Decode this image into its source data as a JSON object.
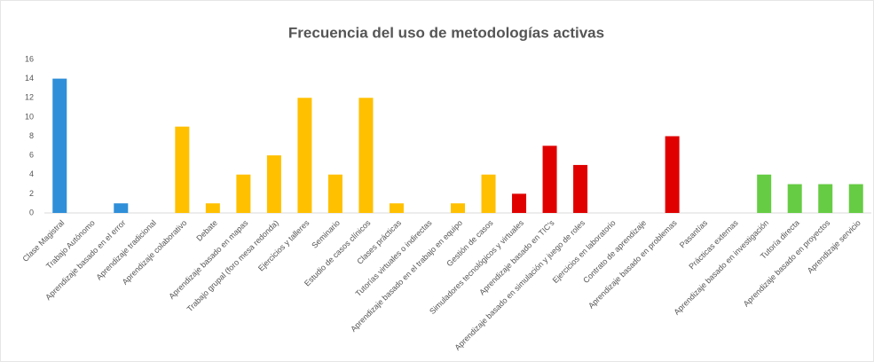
{
  "chart_data": {
    "type": "bar",
    "title": "Frecuencia del uso de metodologías activas",
    "categories": [
      "Clase Magistral",
      "Trabajo Autónomo",
      "Aprendizaje basado en el error",
      "Aprendizaje tradicional",
      "Aprendizaje colaborativo",
      "Debate",
      "Aprendizaje basado en mapas",
      "Trabajo grupal (foro mesa redonda)",
      "Ejercicios y talleres",
      "Seminario",
      "Estudio de casos clínicos",
      "Clases prácticas",
      "Tutorías virtuales o indirectas",
      "Aprendizaje basado en el trabajo en equipo",
      "Gestión de casos",
      "Simuladores tecnológicos y virtuales",
      "Aprendizaje basado en TIC's",
      "Aprendizaje basado en simulación y juego de roles",
      "Ejercicios en laboratorio",
      "Contrato de aprendizaje",
      "Aprendizaje basado en problemas",
      "Pasantías",
      "Prácticas externas",
      "Aprendizaje basado en investigación",
      "Tutoría directa",
      "Aprendizaje basado en proyectos",
      "Aprendizaje servicio"
    ],
    "values": [
      14,
      0,
      1,
      0,
      9,
      1,
      4,
      6,
      12,
      4,
      12,
      1,
      0,
      1,
      4,
      2,
      7,
      5,
      0,
      0,
      8,
      0,
      0,
      4,
      3,
      3,
      3
    ],
    "colors": [
      "#2f8fd8",
      "#2f8fd8",
      "#2f8fd8",
      "#2f8fd8",
      "#ffc000",
      "#ffc000",
      "#ffc000",
      "#ffc000",
      "#ffc000",
      "#ffc000",
      "#ffc000",
      "#ffc000",
      "#ffc000",
      "#ffc000",
      "#ffc000",
      "#e00000",
      "#e00000",
      "#e00000",
      "#e00000",
      "#e00000",
      "#e00000",
      "#e00000",
      "#e00000",
      "#66cc44",
      "#66cc44",
      "#66cc44",
      "#66cc44"
    ],
    "ylim": [
      0,
      16
    ],
    "yticks": [
      0,
      2,
      4,
      6,
      8,
      10,
      12,
      14,
      16
    ],
    "grid": false
  }
}
